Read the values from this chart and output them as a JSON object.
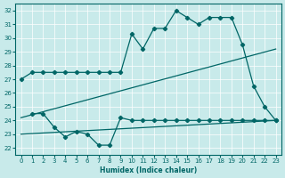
{
  "xlabel": "Humidex (Indice chaleur)",
  "xlim": [
    -0.5,
    23.5
  ],
  "ylim": [
    21.5,
    32.5
  ],
  "yticks": [
    22,
    23,
    24,
    25,
    26,
    27,
    28,
    29,
    30,
    31,
    32
  ],
  "xticks": [
    0,
    1,
    2,
    3,
    4,
    5,
    6,
    7,
    8,
    9,
    10,
    11,
    12,
    13,
    14,
    15,
    16,
    17,
    18,
    19,
    20,
    21,
    22,
    23
  ],
  "bg_color": "#c8eaea",
  "grid_color": "#ffffff",
  "line_color": "#006666",
  "line1_x": [
    0,
    1,
    2,
    3,
    4,
    5,
    6,
    7,
    8,
    9,
    10,
    11,
    12,
    13,
    14,
    15,
    16,
    17,
    18,
    19,
    20,
    21,
    22,
    23
  ],
  "line1_y": [
    27.0,
    27.5,
    27.5,
    27.5,
    27.5,
    27.5,
    27.5,
    27.5,
    27.5,
    27.5,
    30.3,
    29.2,
    30.7,
    30.7,
    32.0,
    31.5,
    31.0,
    31.5,
    31.5,
    31.5,
    29.5,
    26.5,
    25.0,
    24.0
  ],
  "line2_x": [
    0,
    23
  ],
  "line2_y": [
    24.2,
    29.2
  ],
  "line3_x": [
    0,
    23
  ],
  "line3_y": [
    23.0,
    24.0
  ],
  "line4_x": [
    1,
    2,
    3,
    4,
    5,
    6,
    7,
    8,
    9,
    10,
    11,
    12,
    13,
    14,
    15,
    16,
    17,
    18,
    19,
    20,
    21,
    22,
    23
  ],
  "line4_y": [
    24.5,
    24.5,
    23.5,
    22.8,
    23.2,
    23.0,
    22.2,
    22.2,
    24.2,
    24.0,
    24.0,
    24.0,
    24.0,
    24.0,
    24.0,
    24.0,
    24.0,
    24.0,
    24.0,
    24.0,
    24.0,
    24.0,
    24.0
  ]
}
